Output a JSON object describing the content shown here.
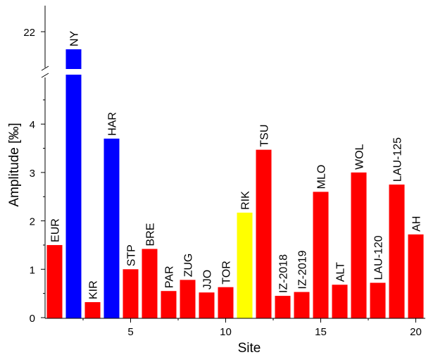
{
  "chart_data": {
    "type": "bar",
    "xlabel": "Site",
    "ylabel": "Amplitude [‰]",
    "xlim": [
      0.5,
      20.5
    ],
    "ylim_lower": [
      0,
      4.8
    ],
    "ylim_upper_ticks": [
      22
    ],
    "axis_break": true,
    "x_ticks": [
      5,
      10,
      15,
      20
    ],
    "y_ticks": [
      0,
      1,
      2,
      3,
      4
    ],
    "grid": false,
    "bars": [
      {
        "x": 1,
        "label": "EUR",
        "value": 1.5,
        "color": "#ff0000"
      },
      {
        "x": 2,
        "label": "NY",
        "value": 21.5,
        "broken": true,
        "color": "#0000ff"
      },
      {
        "x": 3,
        "label": "KIR",
        "value": 0.32,
        "color": "#ff0000"
      },
      {
        "x": 4,
        "label": "HAR",
        "value": 3.7,
        "color": "#0000ff"
      },
      {
        "x": 5,
        "label": "STP",
        "value": 1.0,
        "color": "#ff0000"
      },
      {
        "x": 6,
        "label": "BRE",
        "value": 1.42,
        "color": "#ff0000"
      },
      {
        "x": 7,
        "label": "PAR",
        "value": 0.55,
        "color": "#ff0000"
      },
      {
        "x": 8,
        "label": "ZUG",
        "value": 0.78,
        "color": "#ff0000"
      },
      {
        "x": 9,
        "label": "JJO",
        "value": 0.52,
        "color": "#ff0000"
      },
      {
        "x": 10,
        "label": "TOR",
        "value": 0.63,
        "color": "#ff0000"
      },
      {
        "x": 11,
        "label": "RIK",
        "value": 2.17,
        "color": "#ffff00"
      },
      {
        "x": 12,
        "label": "TSU",
        "value": 3.47,
        "color": "#ff0000"
      },
      {
        "x": 13,
        "label": "IZ-2018",
        "value": 0.45,
        "color": "#ff0000"
      },
      {
        "x": 14,
        "label": "IZ-2019",
        "value": 0.53,
        "color": "#ff0000"
      },
      {
        "x": 15,
        "label": "MLO",
        "value": 2.6,
        "color": "#ff0000"
      },
      {
        "x": 16,
        "label": "ALT",
        "value": 0.68,
        "color": "#ff0000"
      },
      {
        "x": 17,
        "label": "WOL",
        "value": 3.0,
        "color": "#ff0000"
      },
      {
        "x": 18,
        "label": "LAU-120",
        "value": 0.72,
        "color": "#ff0000"
      },
      {
        "x": 19,
        "label": "LAU-125",
        "value": 2.75,
        "color": "#ff0000"
      },
      {
        "x": 20,
        "label": "AH",
        "value": 1.72,
        "color": "#ff0000"
      }
    ]
  }
}
